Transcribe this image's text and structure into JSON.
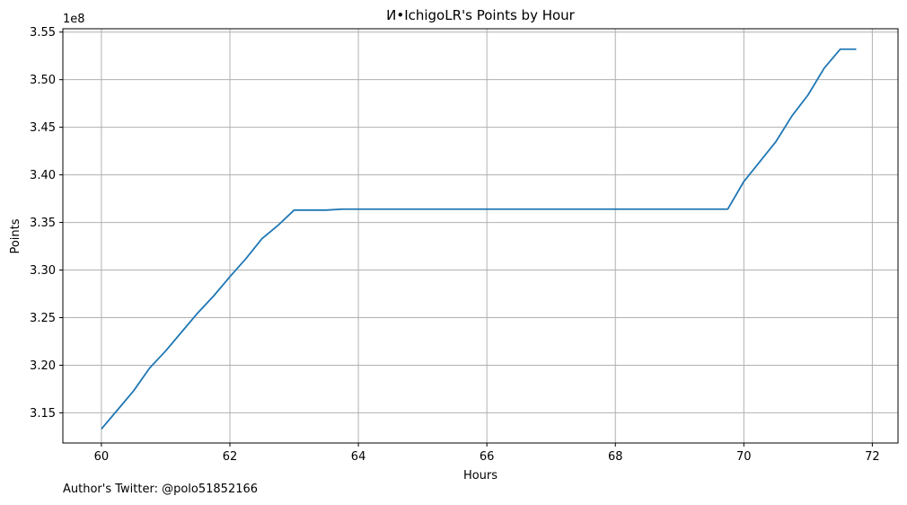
{
  "chart_data": {
    "type": "line",
    "title": "И•IchigoLR's Points by Hour",
    "xlabel": "Hours",
    "ylabel": "Points",
    "y_scale_note": "1e8",
    "xlim": [
      59.4,
      72.4
    ],
    "ylim": [
      3.1183,
      3.5535
    ],
    "xticks": [
      60,
      62,
      64,
      66,
      68,
      70,
      72
    ],
    "yticks": [
      3.15,
      3.2,
      3.25,
      3.3,
      3.35,
      3.4,
      3.45,
      3.5,
      3.55
    ],
    "xtick_labels": [
      "60",
      "62",
      "64",
      "66",
      "68",
      "70",
      "72"
    ],
    "ytick_labels": [
      "3.15",
      "3.20",
      "3.25",
      "3.30",
      "3.35",
      "3.40",
      "3.45",
      "3.50",
      "3.55"
    ],
    "grid": true,
    "series": [
      {
        "color": "#1f77b4",
        "x": [
          60.0,
          60.25,
          60.5,
          60.75,
          61.0,
          61.25,
          61.5,
          61.75,
          62.0,
          62.25,
          62.5,
          62.75,
          63.0,
          63.25,
          63.5,
          63.75,
          64.0,
          65.0,
          66.0,
          67.0,
          68.0,
          69.0,
          69.75,
          70.0,
          70.25,
          70.5,
          70.75,
          71.0,
          71.25,
          71.5,
          71.75
        ],
        "y": [
          3.133,
          3.153,
          3.173,
          3.197,
          3.215,
          3.235,
          3.255,
          3.273,
          3.293,
          3.312,
          3.333,
          3.347,
          3.363,
          3.363,
          3.363,
          3.364,
          3.364,
          3.364,
          3.364,
          3.364,
          3.364,
          3.364,
          3.364,
          3.393,
          3.414,
          3.435,
          3.462,
          3.484,
          3.512,
          3.532,
          3.532
        ]
      }
    ]
  },
  "footer": {
    "credit": "Author's Twitter: @polo51852166"
  }
}
